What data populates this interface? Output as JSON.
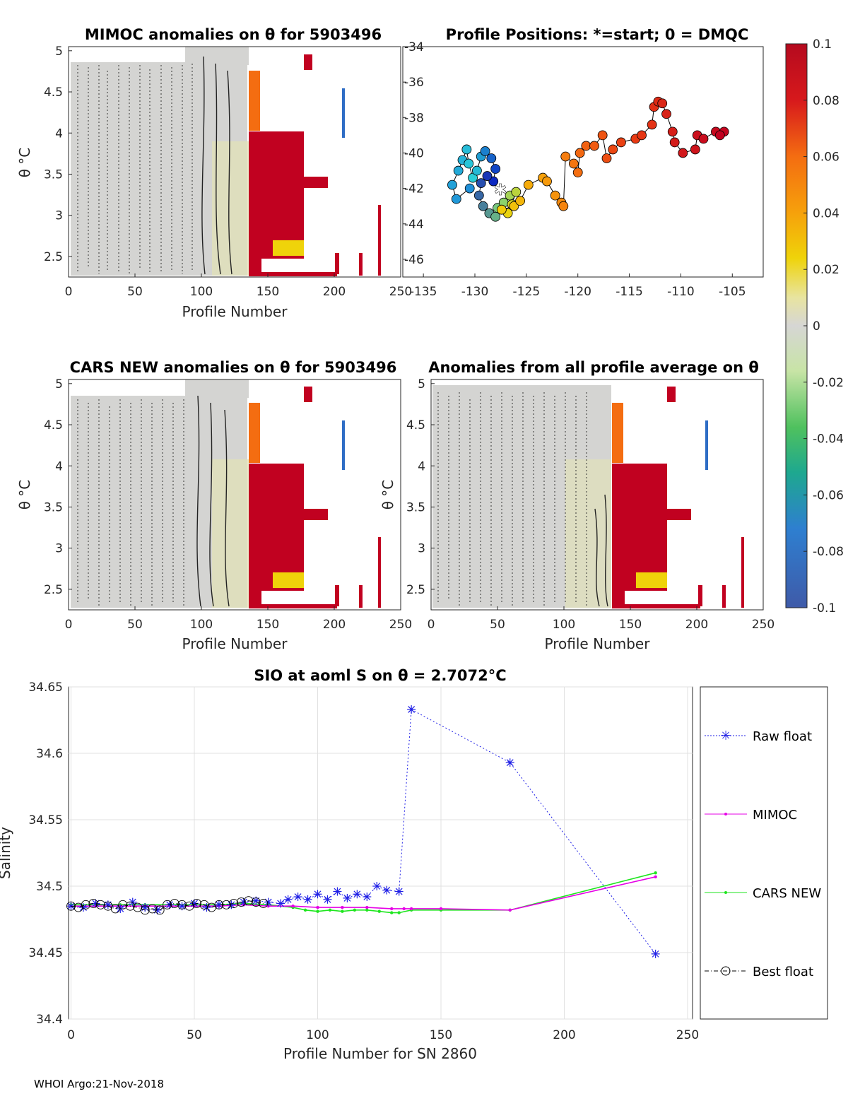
{
  "footer": "WHOI Argo:21-Nov-2018",
  "colors": {
    "raw": "#1f1fe6",
    "mimoc": "#e600e6",
    "cars": "#1ee61e",
    "best": "#000000",
    "grey": "#d3d3d1",
    "red": "#c10120",
    "orange": "#f46d11",
    "yellow": "#efd30a",
    "green": "#6cc16c",
    "blue": "#2e6dc5",
    "darkblue": "#0a22c0",
    "cyan": "#2ad0d8"
  },
  "panels": {
    "mimoc": {
      "title": "MIMOC anomalies on θ  for 5903496",
      "xlabel": "Profile Number",
      "ylabel": "θ °C"
    },
    "positions": {
      "title": "Profile Positions: *=start; 0 = DMQC"
    },
    "cars": {
      "title": "CARS NEW anomalies on θ for 5903496",
      "xlabel": "Profile Number",
      "ylabel": "θ °C"
    },
    "allavg": {
      "title": "Anomalies from all profile average on θ",
      "xlabel": "Profile Number",
      "ylabel": "θ °C"
    },
    "salinity": {
      "title": "SIO at aoml S on θ = 2.7072°C",
      "xlabel": "Profile Number for SN 2860",
      "ylabel": "Salinity"
    }
  },
  "legend": [
    "Raw float",
    "MIMOC",
    "CARS NEW",
    "Best float"
  ],
  "chart_data": [
    {
      "type": "heatmap",
      "id": "mimoc",
      "title": "MIMOC anomalies on θ  for 5903496",
      "xlabel": "Profile Number",
      "ylabel": "θ °C",
      "xlim": [
        0,
        250
      ],
      "ylim": [
        2.25,
        5.05
      ],
      "xticks": [
        0,
        50,
        100,
        150,
        200,
        250
      ],
      "yticks": [
        2.5,
        3,
        3.5,
        4,
        4.5,
        5
      ]
    },
    {
      "type": "scatter",
      "id": "positions",
      "title": "Profile Positions: *=start; 0 = DMQC",
      "xlim": [
        -137,
        -102
      ],
      "ylim": [
        -47,
        -34
      ],
      "xticks": [
        -135,
        -130,
        -125,
        -120,
        -115,
        -110,
        -105
      ],
      "yticks": [
        -34,
        -36,
        -38,
        -40,
        -42,
        -44,
        -46
      ],
      "points": [
        [
          -130.5,
          -42.0
        ],
        [
          -131.8,
          -42.6
        ],
        [
          -132.2,
          -41.8
        ],
        [
          -131.6,
          -41.0
        ],
        [
          -131.2,
          -40.4
        ],
        [
          -130.8,
          -39.8
        ],
        [
          -130.6,
          -40.6
        ],
        [
          -130.2,
          -41.4
        ],
        [
          -129.8,
          -41.0
        ],
        [
          -129.4,
          -40.2
        ],
        [
          -129.0,
          -39.9
        ],
        [
          -128.4,
          -40.3
        ],
        [
          -128.0,
          -40.9
        ],
        [
          -128.2,
          -41.6
        ],
        [
          -128.8,
          -41.3
        ],
        [
          -129.4,
          -41.7
        ],
        [
          -129.6,
          -42.4
        ],
        [
          -129.2,
          -43.0
        ],
        [
          -128.6,
          -43.4
        ],
        [
          -128.0,
          -43.6
        ],
        [
          -127.8,
          -43.1
        ],
        [
          -127.2,
          -42.8
        ],
        [
          -126.6,
          -42.4
        ],
        [
          -126.0,
          -42.2
        ],
        [
          -126.4,
          -42.9
        ],
        [
          -126.8,
          -43.4
        ],
        [
          -127.4,
          -43.2
        ],
        [
          -126.2,
          -43.0
        ],
        [
          -125.6,
          -42.7
        ],
        [
          -124.8,
          -41.8
        ],
        [
          -123.4,
          -41.4
        ],
        [
          -123.0,
          -41.6
        ],
        [
          -122.2,
          -42.4
        ],
        [
          -121.6,
          -42.8
        ],
        [
          -121.4,
          -43.0
        ],
        [
          -121.2,
          -40.2
        ],
        [
          -120.4,
          -40.6
        ],
        [
          -120.0,
          -41.1
        ],
        [
          -119.8,
          -40.0
        ],
        [
          -119.2,
          -39.6
        ],
        [
          -118.4,
          -39.6
        ],
        [
          -117.6,
          -39.0
        ],
        [
          -117.2,
          -40.3
        ],
        [
          -116.6,
          -39.8
        ],
        [
          -115.8,
          -39.4
        ],
        [
          -114.4,
          -39.2
        ],
        [
          -113.8,
          -39.0
        ],
        [
          -112.8,
          -38.4
        ],
        [
          -112.6,
          -37.4
        ],
        [
          -112.2,
          -37.1
        ],
        [
          -111.8,
          -37.2
        ],
        [
          -111.4,
          -37.8
        ],
        [
          -110.8,
          -38.8
        ],
        [
          -110.6,
          -39.4
        ],
        [
          -109.8,
          -40.0
        ],
        [
          -108.6,
          -39.8
        ],
        [
          -108.4,
          -39.0
        ],
        [
          -107.8,
          -39.2
        ],
        [
          -106.6,
          -38.8
        ],
        [
          -105.8,
          -38.8
        ],
        [
          -106.2,
          -39.0
        ]
      ]
    },
    {
      "type": "heatmap",
      "id": "cars",
      "title": "CARS NEW anomalies on θ for 5903496",
      "xlabel": "Profile Number",
      "ylabel": "θ °C",
      "xlim": [
        0,
        250
      ],
      "ylim": [
        2.25,
        5.05
      ],
      "xticks": [
        0,
        50,
        100,
        150,
        200,
        250
      ],
      "yticks": [
        2.5,
        3,
        3.5,
        4,
        4.5,
        5
      ]
    },
    {
      "type": "heatmap",
      "id": "allavg",
      "title": "Anomalies from all profile average on θ",
      "xlabel": "Profile Number",
      "ylabel": "θ °C",
      "xlim": [
        0,
        250
      ],
      "ylim": [
        2.25,
        5.05
      ],
      "xticks": [
        0,
        50,
        100,
        150,
        200,
        250
      ],
      "yticks": [
        2.5,
        3,
        3.5,
        4,
        4.5,
        5
      ]
    },
    {
      "type": "colorbar",
      "id": "colorbar",
      "range": [
        -0.1,
        0.1
      ],
      "ticks": [
        "0.1",
        "0.08",
        "0.06",
        "0.04",
        "0.02",
        "0",
        "-0.02",
        "-0.04",
        "-0.06",
        "-0.08",
        "-0.1"
      ],
      "tick_values": [
        0.1,
        0.08,
        0.06,
        0.04,
        0.02,
        0,
        -0.02,
        -0.04,
        -0.06,
        -0.08,
        -0.1
      ]
    },
    {
      "type": "line",
      "id": "salinity",
      "title": "SIO at aoml S on θ = 2.7072°C",
      "xlabel": "Profile Number for SN 2860",
      "ylabel": "Salinity",
      "xlim": [
        -1,
        252
      ],
      "ylim": [
        34.4,
        34.65
      ],
      "xticks": [
        0,
        50,
        100,
        150,
        200,
        250
      ],
      "yticks": [
        34.4,
        34.45,
        34.5,
        34.55,
        34.6,
        34.65
      ],
      "ytick_labels": [
        "34.4",
        "34.45",
        "34.5",
        "34.55",
        "34.6",
        "34.65"
      ],
      "series": [
        {
          "name": "Raw float",
          "x": [
            0,
            5,
            10,
            15,
            20,
            25,
            30,
            35,
            40,
            45,
            50,
            55,
            60,
            65,
            70,
            75,
            80,
            85,
            88,
            92,
            96,
            100,
            104,
            108,
            112,
            116,
            120,
            124,
            128,
            133,
            138,
            178,
            237
          ],
          "y": [
            34.485,
            34.484,
            34.487,
            34.486,
            34.483,
            34.488,
            34.484,
            34.482,
            34.486,
            34.485,
            34.487,
            34.484,
            34.486,
            34.486,
            34.488,
            34.489,
            34.488,
            34.487,
            34.49,
            34.492,
            34.49,
            34.494,
            34.49,
            34.496,
            34.491,
            34.494,
            34.492,
            34.5,
            34.497,
            34.496,
            34.633,
            34.593,
            34.449
          ]
        },
        {
          "name": "MIMOC",
          "x": [
            0,
            10,
            20,
            30,
            40,
            50,
            60,
            70,
            80,
            90,
            100,
            110,
            120,
            130,
            135,
            138,
            150,
            178,
            237
          ],
          "y": [
            34.485,
            34.485,
            34.485,
            34.485,
            34.485,
            34.485,
            34.485,
            34.486,
            34.485,
            34.485,
            34.484,
            34.484,
            34.484,
            34.483,
            34.483,
            34.483,
            34.483,
            34.482,
            34.507
          ]
        },
        {
          "name": "CARS NEW",
          "x": [
            0,
            10,
            20,
            30,
            40,
            50,
            60,
            70,
            80,
            90,
            95,
            100,
            105,
            110,
            115,
            120,
            125,
            130,
            133,
            138,
            150,
            178,
            237
          ],
          "y": [
            34.486,
            34.486,
            34.486,
            34.486,
            34.486,
            34.486,
            34.486,
            34.487,
            34.486,
            34.484,
            34.482,
            34.481,
            34.482,
            34.481,
            34.482,
            34.482,
            34.481,
            34.48,
            34.48,
            34.482,
            34.482,
            34.482,
            34.51
          ]
        },
        {
          "name": "Best float",
          "x": [
            0,
            3,
            6,
            9,
            12,
            15,
            18,
            21,
            24,
            27,
            30,
            33,
            36,
            39,
            42,
            45,
            48,
            51,
            54,
            57,
            60,
            63,
            66,
            69,
            72,
            75,
            78
          ],
          "y": [
            34.485,
            34.484,
            34.486,
            34.487,
            34.486,
            34.485,
            34.483,
            34.486,
            34.485,
            34.484,
            34.482,
            34.483,
            34.482,
            34.486,
            34.487,
            34.486,
            34.485,
            34.487,
            34.486,
            34.484,
            34.486,
            34.486,
            34.487,
            34.488,
            34.489,
            34.488,
            34.487
          ]
        }
      ]
    }
  ]
}
